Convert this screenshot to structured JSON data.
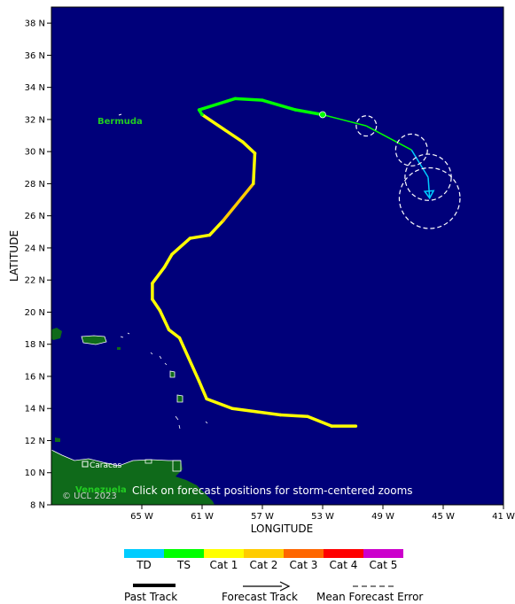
{
  "axes": {
    "xlabel": "LONGITUDE",
    "ylabel": "LATITUDE",
    "lat_ticks": [
      "38 N",
      "36 N",
      "34 N",
      "32 N",
      "30 N",
      "28 N",
      "26 N",
      "24 N",
      "22 N",
      "20 N",
      "18 N",
      "16 N",
      "14 N",
      "12 N",
      "10 N",
      "8 N"
    ],
    "lon_ticks": [
      "65 W",
      "61 W",
      "57 W",
      "53 W",
      "49 W",
      "45 W",
      "41 W"
    ]
  },
  "labels": {
    "bermuda": "Bermuda",
    "venezuela": "Venezuela",
    "caracas": "Caracas",
    "copyright": "© UCL 2023",
    "click_note": "Click on forecast positions for storm-centered zooms"
  },
  "colors": {
    "ocean": "#00007a",
    "land": "#0f6a1a",
    "TD": "#00ccff",
    "TS": "#00ff00",
    "Cat 1": "#ffff00",
    "Cat 2": "#ffcc00",
    "Cat 3": "#ff6600",
    "Cat 4": "#ff0000",
    "Cat 5": "#cc00cc"
  },
  "legend": {
    "categories": [
      "TD",
      "TS",
      "Cat 1",
      "Cat 2",
      "Cat 3",
      "Cat 4",
      "Cat 5"
    ],
    "past_track": "Past Track",
    "forecast_track": "Forecast Track",
    "mean_error": "Mean Forecast Error"
  },
  "chart_data": {
    "type": "map",
    "lon_range": [
      -71,
      -41
    ],
    "lat_range": [
      8,
      39
    ],
    "past_track": [
      {
        "lon": -50.8,
        "lat": 12.9,
        "cat": "Cat 1"
      },
      {
        "lon": -52.4,
        "lat": 12.9,
        "cat": "Cat 1"
      },
      {
        "lon": -54.0,
        "lat": 13.5,
        "cat": "Cat 1"
      },
      {
        "lon": -55.8,
        "lat": 13.6,
        "cat": "Cat 1"
      },
      {
        "lon": -59.0,
        "lat": 14.0,
        "cat": "Cat 1"
      },
      {
        "lon": -60.7,
        "lat": 14.6,
        "cat": "Cat 1"
      },
      {
        "lon": -61.2,
        "lat": 15.7,
        "cat": "Cat 1"
      },
      {
        "lon": -62.5,
        "lat": 18.4,
        "cat": "Cat 1"
      },
      {
        "lon": -63.2,
        "lat": 18.9,
        "cat": "Cat 1"
      },
      {
        "lon": -63.8,
        "lat": 20.1,
        "cat": "Cat 1"
      },
      {
        "lon": -64.3,
        "lat": 20.8,
        "cat": "Cat 1"
      },
      {
        "lon": -64.3,
        "lat": 21.8,
        "cat": "Cat 1"
      },
      {
        "lon": -63.5,
        "lat": 22.8,
        "cat": "Cat 1"
      },
      {
        "lon": -63.0,
        "lat": 23.6,
        "cat": "Cat 1"
      },
      {
        "lon": -61.8,
        "lat": 24.6,
        "cat": "Cat 1"
      },
      {
        "lon": -60.5,
        "lat": 24.8,
        "cat": "Cat 1"
      },
      {
        "lon": -59.6,
        "lat": 25.7,
        "cat": "Cat 1"
      },
      {
        "lon": -57.6,
        "lat": 28.0,
        "cat": "Cat 2"
      },
      {
        "lon": -57.5,
        "lat": 29.9,
        "cat": "Cat 1"
      },
      {
        "lon": -58.3,
        "lat": 30.6,
        "cat": "Cat 1"
      },
      {
        "lon": -61.0,
        "lat": 32.3,
        "cat": "Cat 1"
      },
      {
        "lon": -61.2,
        "lat": 32.6,
        "cat": "TS"
      },
      {
        "lon": -58.8,
        "lat": 33.3,
        "cat": "TS"
      },
      {
        "lon": -57.0,
        "lat": 33.2,
        "cat": "TS"
      },
      {
        "lon": -54.8,
        "lat": 32.6,
        "cat": "TS"
      },
      {
        "lon": -53.0,
        "lat": 32.3,
        "cat": "TS"
      }
    ],
    "current_position": {
      "lon": -53.0,
      "lat": 32.3
    },
    "forecast_track": [
      {
        "lon": -53.0,
        "lat": 32.3,
        "cat": "TS"
      },
      {
        "lon": -50.1,
        "lat": 31.6,
        "cat": "TS"
      },
      {
        "lon": -47.1,
        "lat": 30.1,
        "cat": "TD"
      },
      {
        "lon": -46.0,
        "lat": 28.4,
        "cat": "TD"
      },
      {
        "lon": -45.9,
        "lat": 27.1,
        "cat": "TD"
      }
    ],
    "error_circles": [
      {
        "lon": -50.1,
        "lat": 31.6,
        "radius_deg": 0.7
      },
      {
        "lon": -47.1,
        "lat": 30.1,
        "radius_deg": 1.1
      },
      {
        "lon": -46.0,
        "lat": 28.4,
        "radius_deg": 1.6
      },
      {
        "lon": -45.9,
        "lat": 27.1,
        "radius_deg": 2.1
      }
    ]
  }
}
